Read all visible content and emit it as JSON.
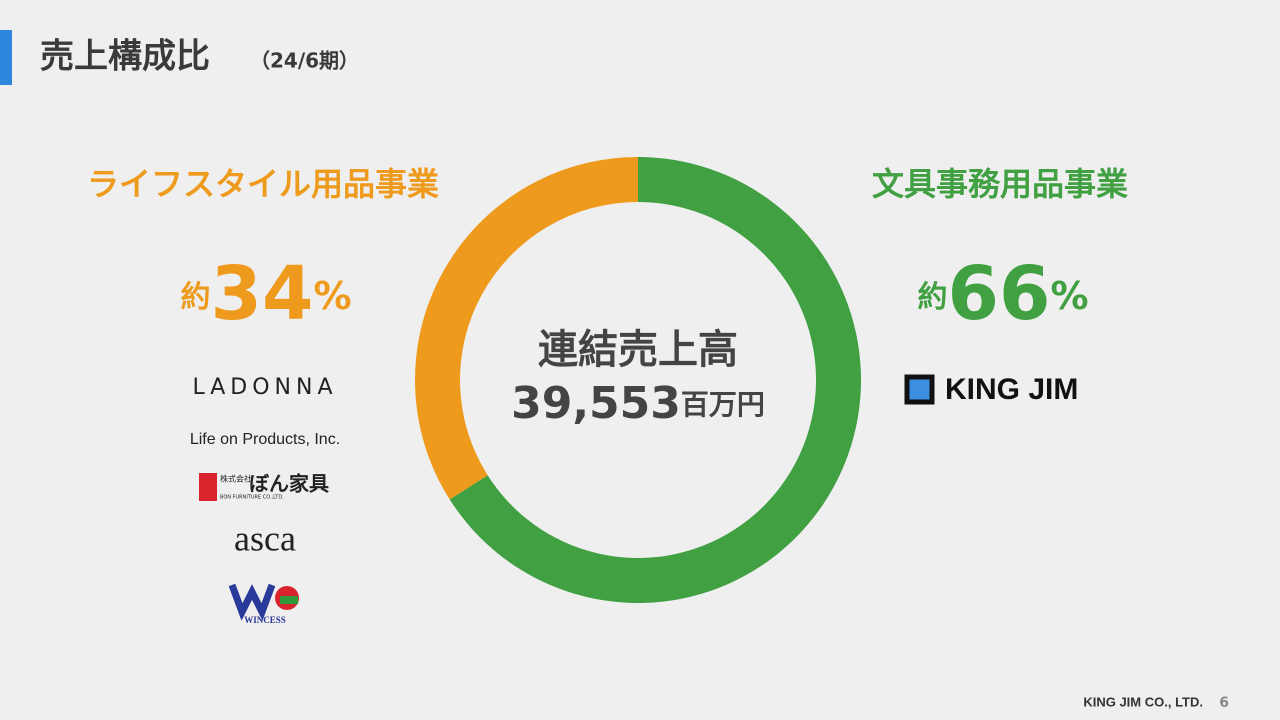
{
  "header": {
    "title": "売上構成比",
    "subtitle": "（24/6期）"
  },
  "chart_data": {
    "type": "pie",
    "categories": [
      "ライフスタイル用品事業",
      "文具事務用品事業"
    ],
    "values": [
      34,
      66
    ],
    "colors": [
      "#ee9a1c",
      "#40a042"
    ],
    "label_prefix": "約",
    "label_suffix": "%",
    "center_title": "連結売上高",
    "center_value": "39,553",
    "center_unit": "百万円"
  },
  "brands": {
    "left": {
      "ladonna": "LADONNA",
      "lifeon": "Life on Products, Inc.",
      "bon_corp": "株式会社",
      "bon": "ぼん家具",
      "bon_en": "BON FURNITURE CO.,LTD.",
      "asca": "asca",
      "wincess": "WINCESS"
    },
    "right": {
      "kingjim": "KING JIM"
    }
  },
  "footer": {
    "company": "KING JIM CO., LTD.",
    "page": "6"
  }
}
